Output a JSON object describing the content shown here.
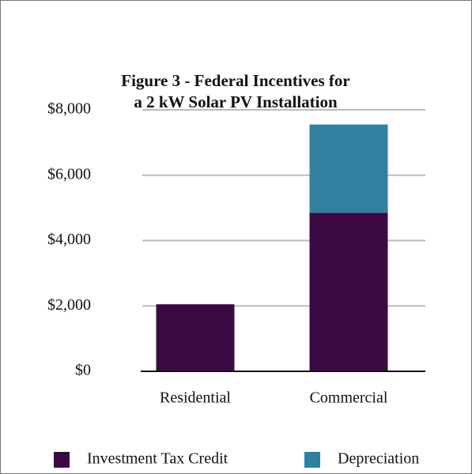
{
  "chart_data": {
    "type": "stacked_bar",
    "title": "Figure 3 - Federal Incentives for",
    "subtitle": "a 2 kW Solar PV Installation",
    "categories": [
      "Residential",
      "Commercial"
    ],
    "series": [
      {
        "name": "Investment Tax Credit",
        "color": "#3b0a45",
        "values": [
          2050,
          4850
        ]
      },
      {
        "name": "Depreciation",
        "color": "#31809f",
        "values": [
          null,
          2700
        ]
      }
    ],
    "ylim": [
      0,
      8000
    ],
    "yticks": [
      {
        "value": 0,
        "label": "$0"
      },
      {
        "value": 2000,
        "label": "$2,000"
      },
      {
        "value": 4000,
        "label": "$4,000"
      },
      {
        "value": 6000,
        "label": "$6,000"
      },
      {
        "value": 8000,
        "label": "$8,000"
      }
    ],
    "grid": true,
    "legend": "bottom"
  }
}
